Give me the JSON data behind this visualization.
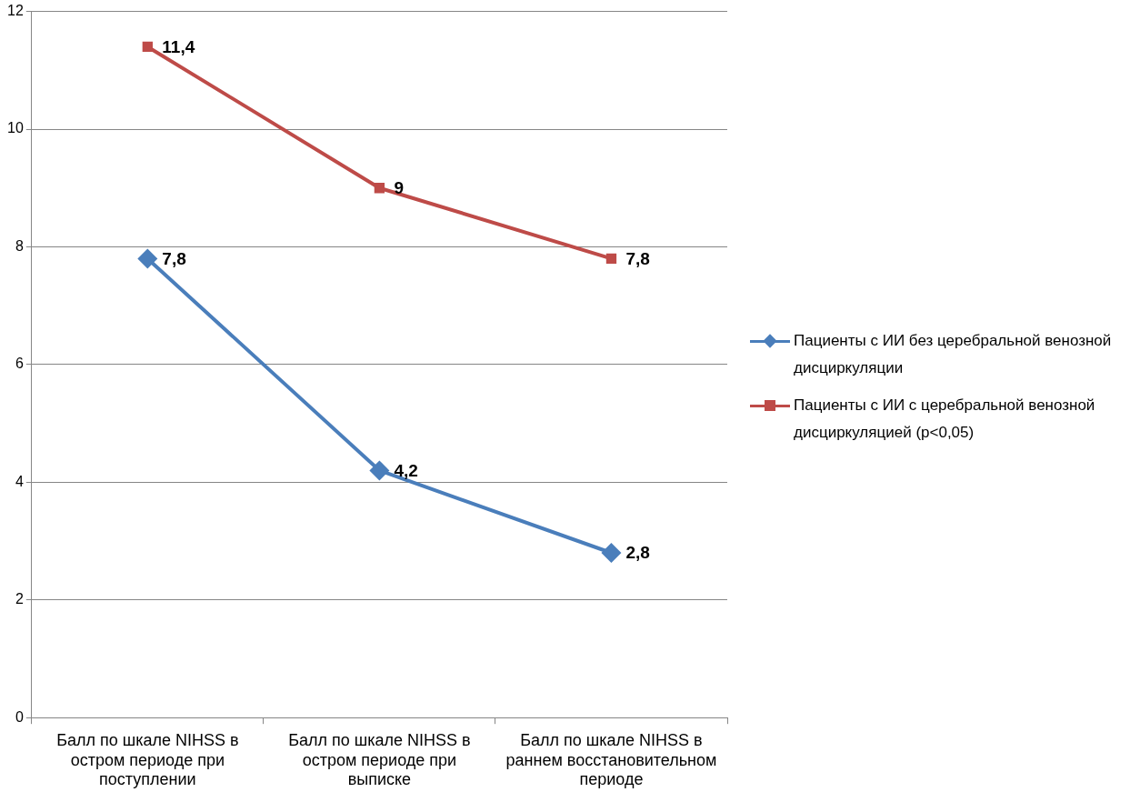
{
  "chart_data": {
    "type": "line",
    "categories": [
      "Балл по шкале NIHSS в остром периоде при поступлении",
      "Балл по шкале NIHSS в остром периоде при выписке",
      "Балл по шкале NIHSS в раннем восстановительном периоде"
    ],
    "series": [
      {
        "name": "Пациенты с ИИ без церебральной венозной дисциркуляции",
        "color": "#4a7ebb",
        "marker": "diamond",
        "values": [
          7.8,
          4.2,
          2.8
        ],
        "value_labels": [
          "7,8",
          "4,2",
          "2,8"
        ]
      },
      {
        "name": "Пациенты с ИИ с церебральной венозной дисциркуляцией (p<0,05)",
        "color": "#be4b48",
        "marker": "square",
        "values": [
          11.4,
          9,
          7.8
        ],
        "value_labels": [
          "11,4",
          "9",
          "7,8"
        ]
      }
    ],
    "ylim": [
      0,
      12
    ],
    "yticks": [
      0,
      2,
      4,
      6,
      8,
      10,
      12
    ],
    "grid": "y",
    "legend": "right",
    "line_style": "solid"
  }
}
